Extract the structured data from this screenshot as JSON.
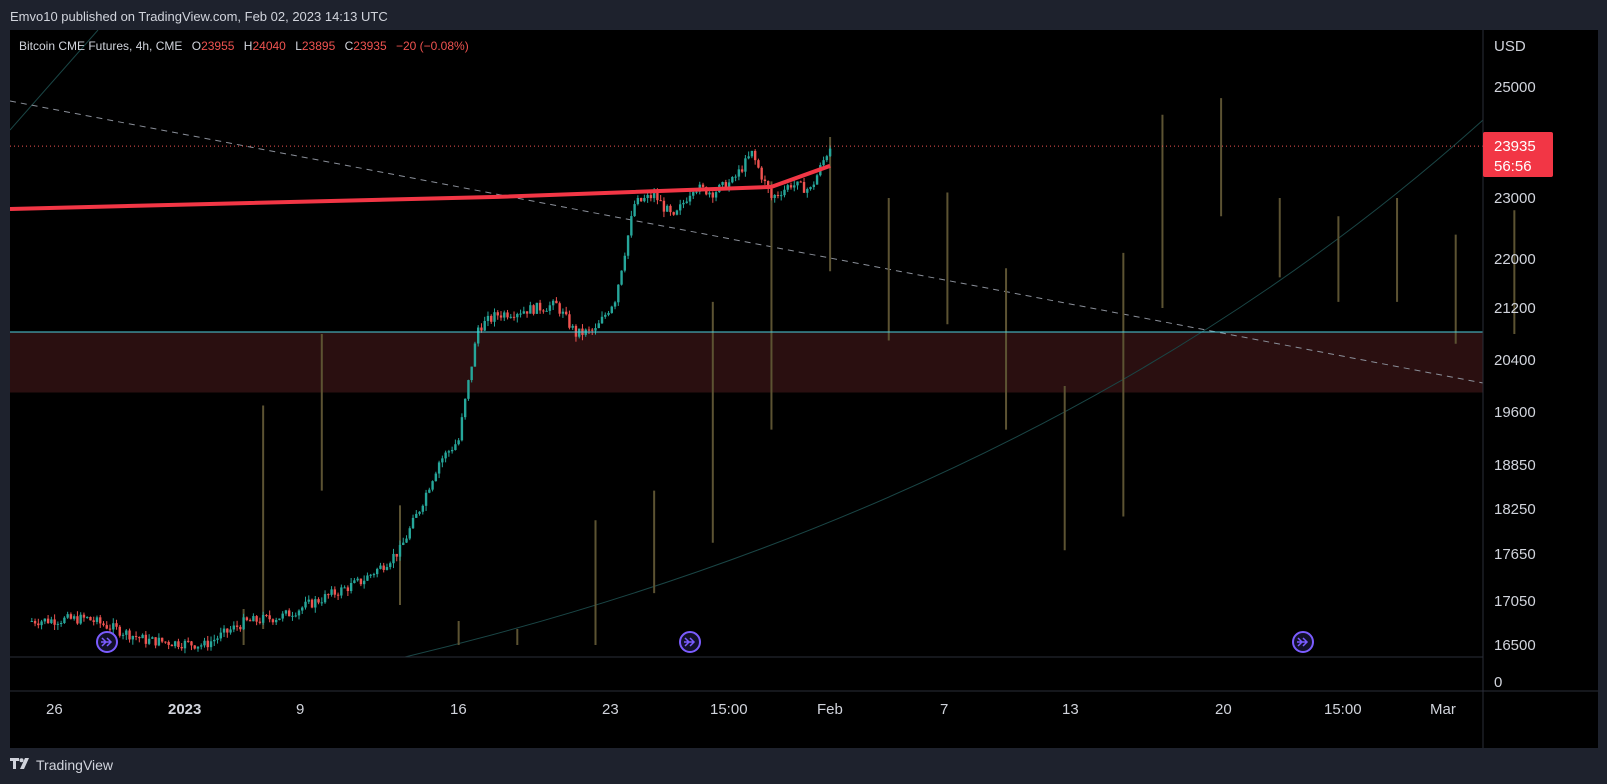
{
  "header": {
    "published": "Emvo10 published on TradingView.com, Feb 02, 2023 14:13 UTC"
  },
  "footer": {
    "brand": "TradingView",
    "logo_icon": "tradingview-logo-icon"
  },
  "colors": {
    "up": "#26a69a",
    "down": "#ef5350",
    "ma": "#f23645",
    "support": "#4dd0e1",
    "zone": "#2a0f10",
    "wick_ghost": "#5c5332",
    "curve": "#1a4646",
    "bubble": "#7b5cff"
  },
  "chart_data": {
    "type": "candlestick",
    "title": "Bitcoin CME Futures, 4h, CME",
    "ohlc": {
      "O": {
        "label": "O",
        "value": "23955"
      },
      "H": {
        "label": "H",
        "value": "24040"
      },
      "L": {
        "label": "L",
        "value": "23895"
      },
      "C": {
        "label": "C",
        "value": "23935"
      },
      "change": "−20 (−0.08%)"
    },
    "price_axis": {
      "currency": "USD",
      "ticks": [
        "25000",
        "23000",
        "22000",
        "21200",
        "20400",
        "19600",
        "18850",
        "18250",
        "17650",
        "17050",
        "16500",
        "0"
      ],
      "last_price": "23935",
      "countdown": "56:56"
    },
    "time_axis": {
      "ticks": [
        {
          "label": "26",
          "bold": false
        },
        {
          "label": "2023",
          "bold": true
        },
        {
          "label": "9",
          "bold": false
        },
        {
          "label": "16",
          "bold": false
        },
        {
          "label": "23",
          "bold": false
        },
        {
          "label": "15:00",
          "bold": false
        },
        {
          "label": "Feb",
          "bold": false
        },
        {
          "label": "7",
          "bold": false
        },
        {
          "label": "13",
          "bold": false
        },
        {
          "label": "20",
          "bold": false
        },
        {
          "label": "15:00",
          "bold": false
        },
        {
          "label": "Mar",
          "bold": false
        }
      ]
    },
    "ma_line": [
      {
        "date": "Dec 23",
        "value": 22820
      },
      {
        "date": "Jan 1",
        "value": 22900
      },
      {
        "date": "Jan 16",
        "value": 23020
      },
      {
        "date": "Jan 30",
        "value": 23200
      },
      {
        "date": "Feb 2",
        "value": 23580
      }
    ],
    "support_level": 20830,
    "zone": {
      "top": 20830,
      "bottom": 19900
    },
    "path": [
      {
        "date": "Dec 23",
        "value": 16800
      },
      {
        "date": "Dec 26",
        "value": 16830
      },
      {
        "date": "Dec 29",
        "value": 16560
      },
      {
        "date": "Jan 1",
        "value": 16500
      },
      {
        "date": "Jan 3",
        "value": 16780
      },
      {
        "date": "Jan 5",
        "value": 16860
      },
      {
        "date": "Jan 9",
        "value": 17300
      },
      {
        "date": "Jan 10",
        "value": 17480
      },
      {
        "date": "Jan 11",
        "value": 17700
      },
      {
        "date": "Jan 12",
        "value": 18250
      },
      {
        "date": "Jan 13",
        "value": 18900
      },
      {
        "date": "Jan 14",
        "value": 19200
      },
      {
        "date": "Jan 15",
        "value": 20900
      },
      {
        "date": "Jan 16",
        "value": 21100
      },
      {
        "date": "Jan 17",
        "value": 21150
      },
      {
        "date": "Jan 19",
        "value": 21250
      },
      {
        "date": "Jan 20",
        "value": 20800
      },
      {
        "date": "Jan 21",
        "value": 20850
      },
      {
        "date": "Jan 22",
        "value": 21350
      },
      {
        "date": "Jan 23",
        "value": 22900
      },
      {
        "date": "Jan 24",
        "value": 23050
      },
      {
        "date": "Jan 25",
        "value": 22650
      },
      {
        "date": "Jan 26",
        "value": 23200
      },
      {
        "date": "Jan 27",
        "value": 23100
      },
      {
        "date": "Jan 28",
        "value": 23300
      },
      {
        "date": "Jan 29",
        "value": 23800
      },
      {
        "date": "Jan 30",
        "value": 23000
      },
      {
        "date": "Jan 31",
        "value": 23250
      },
      {
        "date": "Feb 1",
        "value": 23150
      },
      {
        "date": "Feb 2",
        "value": 23935
      }
    ],
    "ghost_wicks": [
      {
        "date": "Jan 3",
        "high": 16950,
        "low": 16500
      },
      {
        "date": "Jan 4",
        "high": 19700,
        "low": 16700
      },
      {
        "date": "Jan 7",
        "high": 20800,
        "low": 18500
      },
      {
        "date": "Jan 11",
        "high": 18300,
        "low": 17000
      },
      {
        "date": "Jan 14",
        "high": 16800,
        "low": 16500
      },
      {
        "date": "Jan 17",
        "high": 16700,
        "low": 16500
      },
      {
        "date": "Jan 21",
        "high": 18100,
        "low": 16500
      },
      {
        "date": "Jan 24",
        "high": 18500,
        "low": 17150
      },
      {
        "date": "Jan 27",
        "high": 21300,
        "low": 17800
      },
      {
        "date": "Jan 30",
        "high": 23300,
        "low": 19350
      },
      {
        "date": "Feb 2",
        "high": 24100,
        "low": 21800
      },
      {
        "date": "Feb 5",
        "high": 23000,
        "low": 20700
      },
      {
        "date": "Feb 8",
        "high": 23100,
        "low": 20950
      },
      {
        "date": "Feb 11",
        "high": 21850,
        "low": 19350
      },
      {
        "date": "Feb 14",
        "high": 20000,
        "low": 17700
      },
      {
        "date": "Feb 17",
        "high": 22100,
        "low": 18150
      },
      {
        "date": "Feb 19",
        "high": 24500,
        "low": 21200
      },
      {
        "date": "Feb 22",
        "high": 25200,
        "low": 22700
      },
      {
        "date": "Feb 25",
        "high": 23000,
        "low": 21700
      },
      {
        "date": "Feb 28",
        "high": 22700,
        "low": 21300
      },
      {
        "date": "Mar 3",
        "high": 23000,
        "low": 21300
      },
      {
        "date": "Mar 6",
        "high": 22400,
        "low": 20650
      },
      {
        "date": "Mar 9",
        "high": 22800,
        "low": 20800
      }
    ],
    "event_markers": [
      "Dec 29",
      "Jan 29",
      "Feb 28"
    ],
    "marker_icon": "fast-forward-circle-icon",
    "grid": false
  }
}
